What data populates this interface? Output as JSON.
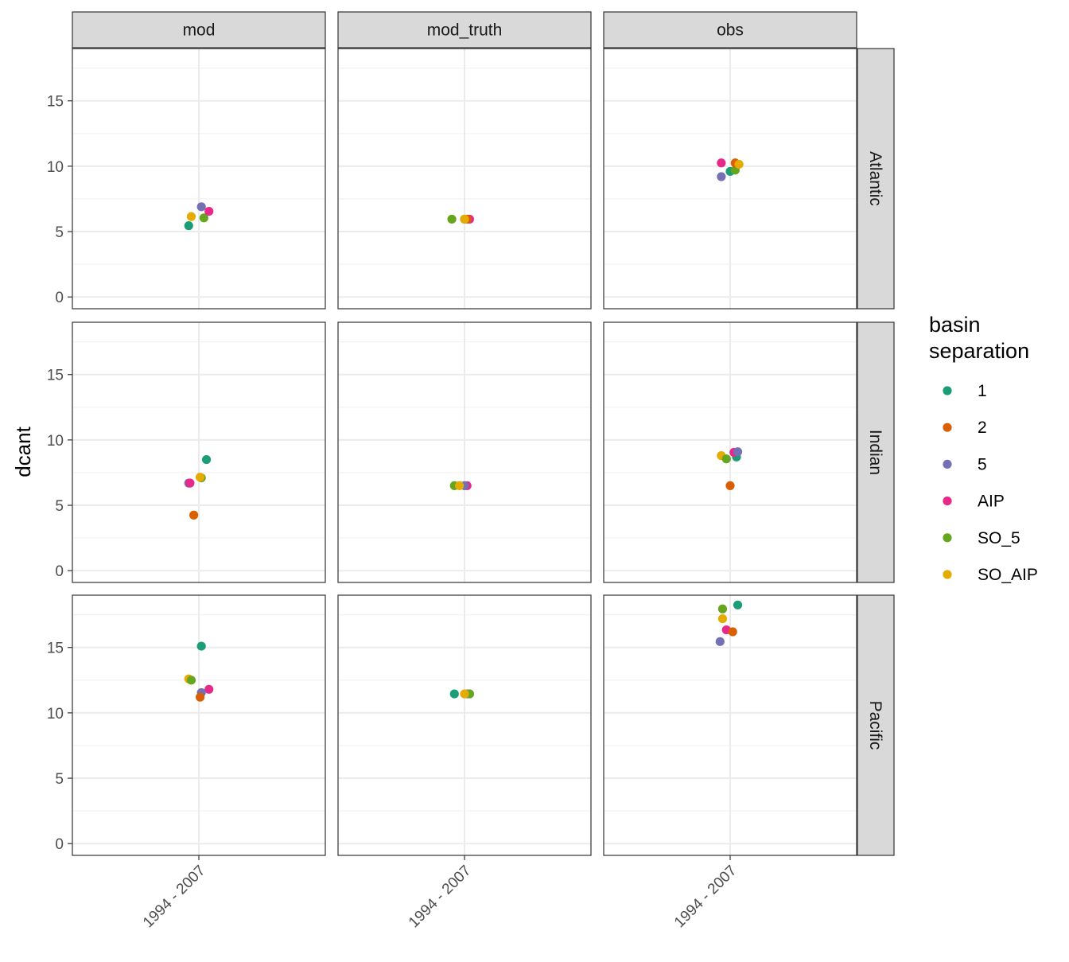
{
  "chart_data": {
    "type": "scatter",
    "facet_columns": [
      "mod",
      "mod_truth",
      "obs"
    ],
    "facet_rows": [
      "Atlantic",
      "Indian",
      "Pacific"
    ],
    "x_categories": [
      "1994 - 2007"
    ],
    "ylabel": "dcant",
    "xlabel": "",
    "ylim": [
      -0.9,
      19
    ],
    "yticks": [
      0,
      5,
      10,
      15
    ],
    "grid": true,
    "legend": {
      "title_lines": [
        "basin",
        "separation"
      ],
      "placement": "right",
      "entries": [
        {
          "label": "1",
          "color": "#1B9E77"
        },
        {
          "label": "2",
          "color": "#D95F02"
        },
        {
          "label": "5",
          "color": "#7570B3"
        },
        {
          "label": "AIP",
          "color": "#E7298A"
        },
        {
          "label": "SO_5",
          "color": "#66A61E"
        },
        {
          "label": "SO_AIP",
          "color": "#E6AB02"
        }
      ]
    },
    "points": [
      {
        "col": "mod",
        "row": "Atlantic",
        "series": "1",
        "jitter": -0.04,
        "y": 5.45
      },
      {
        "col": "mod",
        "row": "Atlantic",
        "series": "SO_AIP",
        "jitter": -0.03,
        "y": 6.15
      },
      {
        "col": "mod",
        "row": "Atlantic",
        "series": "SO_5",
        "jitter": 0.02,
        "y": 6.05
      },
      {
        "col": "mod",
        "row": "Atlantic",
        "series": "AIP",
        "jitter": 0.04,
        "y": 6.55
      },
      {
        "col": "mod",
        "row": "Atlantic",
        "series": "5",
        "jitter": 0.01,
        "y": 6.9
      },
      {
        "col": "mod_truth",
        "row": "Atlantic",
        "series": "SO_5",
        "jitter": -0.05,
        "y": 5.95
      },
      {
        "col": "mod_truth",
        "row": "Atlantic",
        "series": "AIP",
        "jitter": 0.02,
        "y": 5.95
      },
      {
        "col": "mod_truth",
        "row": "Atlantic",
        "series": "2",
        "jitter": 0.01,
        "y": 5.95
      },
      {
        "col": "mod_truth",
        "row": "Atlantic",
        "series": "5",
        "jitter": 0.0,
        "y": 5.95
      },
      {
        "col": "mod_truth",
        "row": "Atlantic",
        "series": "SO_AIP",
        "jitter": 0.0,
        "y": 5.95
      },
      {
        "col": "obs",
        "row": "Atlantic",
        "series": "5",
        "jitter": -0.035,
        "y": 9.2
      },
      {
        "col": "obs",
        "row": "Atlantic",
        "series": "AIP",
        "jitter": -0.035,
        "y": 10.25
      },
      {
        "col": "obs",
        "row": "Atlantic",
        "series": "1",
        "jitter": 0.0,
        "y": 9.6
      },
      {
        "col": "obs",
        "row": "Atlantic",
        "series": "SO_5",
        "jitter": 0.02,
        "y": 9.7
      },
      {
        "col": "obs",
        "row": "Atlantic",
        "series": "2",
        "jitter": 0.02,
        "y": 10.25
      },
      {
        "col": "obs",
        "row": "Atlantic",
        "series": "SO_AIP",
        "jitter": 0.035,
        "y": 10.15
      },
      {
        "col": "mod",
        "row": "Indian",
        "series": "2",
        "jitter": -0.02,
        "y": 4.25
      },
      {
        "col": "mod",
        "row": "Indian",
        "series": "5",
        "jitter": -0.04,
        "y": 6.7
      },
      {
        "col": "mod",
        "row": "Indian",
        "series": "AIP",
        "jitter": -0.035,
        "y": 6.7
      },
      {
        "col": "mod",
        "row": "Indian",
        "series": "SO_5",
        "jitter": 0.01,
        "y": 7.1
      },
      {
        "col": "mod",
        "row": "Indian",
        "series": "SO_AIP",
        "jitter": 0.005,
        "y": 7.15
      },
      {
        "col": "mod",
        "row": "Indian",
        "series": "1",
        "jitter": 0.03,
        "y": 8.5
      },
      {
        "col": "mod_truth",
        "row": "Indian",
        "series": "SO_5",
        "jitter": -0.04,
        "y": 6.5
      },
      {
        "col": "mod_truth",
        "row": "Indian",
        "series": "AIP",
        "jitter": 0.01,
        "y": 6.5
      },
      {
        "col": "mod_truth",
        "row": "Indian",
        "series": "5",
        "jitter": 0.0,
        "y": 6.5
      },
      {
        "col": "mod_truth",
        "row": "Indian",
        "series": "SO_AIP",
        "jitter": -0.02,
        "y": 6.5
      },
      {
        "col": "obs",
        "row": "Indian",
        "series": "2",
        "jitter": 0.0,
        "y": 6.5
      },
      {
        "col": "obs",
        "row": "Indian",
        "series": "SO_AIP",
        "jitter": -0.035,
        "y": 8.8
      },
      {
        "col": "obs",
        "row": "Indian",
        "series": "SO_5",
        "jitter": -0.015,
        "y": 8.55
      },
      {
        "col": "obs",
        "row": "Indian",
        "series": "1",
        "jitter": 0.025,
        "y": 8.7
      },
      {
        "col": "obs",
        "row": "Indian",
        "series": "AIP",
        "jitter": 0.015,
        "y": 9.05
      },
      {
        "col": "obs",
        "row": "Indian",
        "series": "5",
        "jitter": 0.03,
        "y": 9.1
      },
      {
        "col": "mod",
        "row": "Pacific",
        "series": "1",
        "jitter": 0.01,
        "y": 15.1
      },
      {
        "col": "mod",
        "row": "Pacific",
        "series": "SO_AIP",
        "jitter": -0.04,
        "y": 12.6
      },
      {
        "col": "mod",
        "row": "Pacific",
        "series": "SO_5",
        "jitter": -0.03,
        "y": 12.5
      },
      {
        "col": "mod",
        "row": "Pacific",
        "series": "AIP",
        "jitter": 0.04,
        "y": 11.8
      },
      {
        "col": "mod",
        "row": "Pacific",
        "series": "5",
        "jitter": 0.01,
        "y": 11.55
      },
      {
        "col": "mod",
        "row": "Pacific",
        "series": "2",
        "jitter": 0.005,
        "y": 11.2
      },
      {
        "col": "mod_truth",
        "row": "Pacific",
        "series": "1",
        "jitter": -0.04,
        "y": 11.45
      },
      {
        "col": "mod_truth",
        "row": "Pacific",
        "series": "AIP",
        "jitter": 0.02,
        "y": 11.45
      },
      {
        "col": "mod_truth",
        "row": "Pacific",
        "series": "5",
        "jitter": 0.01,
        "y": 11.45
      },
      {
        "col": "mod_truth",
        "row": "Pacific",
        "series": "SO_5",
        "jitter": 0.02,
        "y": 11.45
      },
      {
        "col": "mod_truth",
        "row": "Pacific",
        "series": "SO_AIP",
        "jitter": 0.0,
        "y": 11.45
      },
      {
        "col": "obs",
        "row": "Pacific",
        "series": "1",
        "jitter": 0.03,
        "y": 18.25
      },
      {
        "col": "obs",
        "row": "Pacific",
        "series": "SO_5",
        "jitter": -0.03,
        "y": 17.95
      },
      {
        "col": "obs",
        "row": "Pacific",
        "series": "SO_AIP",
        "jitter": -0.03,
        "y": 17.2
      },
      {
        "col": "obs",
        "row": "Pacific",
        "series": "AIP",
        "jitter": -0.015,
        "y": 16.35
      },
      {
        "col": "obs",
        "row": "Pacific",
        "series": "2",
        "jitter": 0.01,
        "y": 16.2
      },
      {
        "col": "obs",
        "row": "Pacific",
        "series": "5",
        "jitter": -0.04,
        "y": 15.45
      }
    ]
  }
}
